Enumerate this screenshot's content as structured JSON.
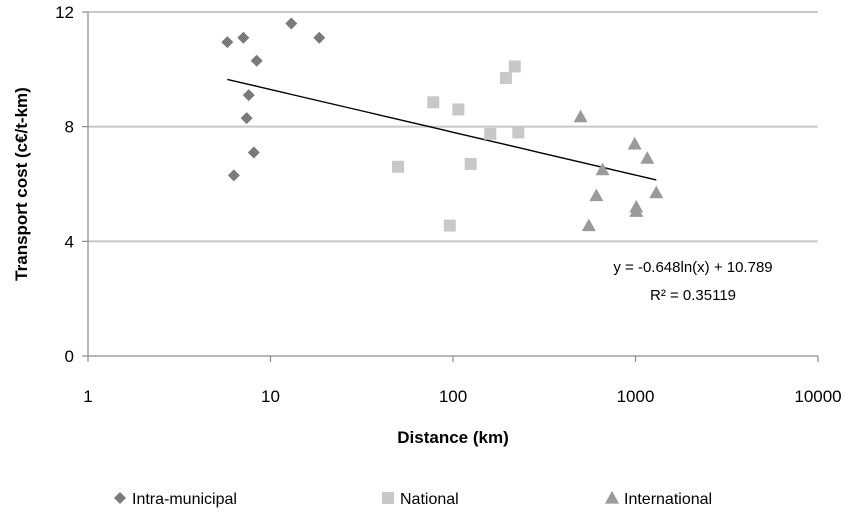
{
  "chart_data": {
    "type": "scatter",
    "xlabel": "Distance (km)",
    "ylabel": "Transport cost  (c€/t-km)",
    "xscale": "log",
    "xlim": [
      1,
      10000
    ],
    "ylim": [
      0,
      12
    ],
    "x_ticks": [
      "1",
      "10",
      "100",
      "1000",
      "10000"
    ],
    "y_ticks": [
      "0",
      "4",
      "8",
      "12"
    ],
    "grid": "horizontal",
    "legend_position": "bottom",
    "series": [
      {
        "name": "Intra-municipal",
        "marker": "diamond",
        "color": "#7a7a7a",
        "points": [
          {
            "x": 5.8,
            "y": 10.95
          },
          {
            "x": 7.1,
            "y": 11.1
          },
          {
            "x": 13,
            "y": 11.6
          },
          {
            "x": 18.5,
            "y": 11.1
          },
          {
            "x": 8.4,
            "y": 10.3
          },
          {
            "x": 7.6,
            "y": 9.1
          },
          {
            "x": 7.4,
            "y": 8.3
          },
          {
            "x": 8.1,
            "y": 7.1
          },
          {
            "x": 6.3,
            "y": 6.3
          }
        ]
      },
      {
        "name": "National",
        "marker": "square",
        "color": "#c8c8c8",
        "points": [
          {
            "x": 50,
            "y": 6.6
          },
          {
            "x": 78,
            "y": 8.85
          },
          {
            "x": 107,
            "y": 8.6
          },
          {
            "x": 125,
            "y": 6.7
          },
          {
            "x": 96,
            "y": 4.55
          },
          {
            "x": 160,
            "y": 7.75
          },
          {
            "x": 195,
            "y": 9.7
          },
          {
            "x": 218,
            "y": 10.1
          },
          {
            "x": 228,
            "y": 7.8
          }
        ]
      },
      {
        "name": "International",
        "marker": "triangle",
        "color": "#9a9a9a",
        "points": [
          {
            "x": 500,
            "y": 8.35
          },
          {
            "x": 555,
            "y": 4.55
          },
          {
            "x": 610,
            "y": 5.6
          },
          {
            "x": 660,
            "y": 6.5
          },
          {
            "x": 990,
            "y": 7.4
          },
          {
            "x": 1010,
            "y": 5.2
          },
          {
            "x": 1010,
            "y": 5.05
          },
          {
            "x": 1160,
            "y": 6.9
          },
          {
            "x": 1300,
            "y": 5.7
          }
        ]
      }
    ],
    "trendline": {
      "type": "log",
      "a": -0.648,
      "b": 10.789,
      "x_range": [
        5.8,
        1300
      ],
      "equation": "y = -0.648ln(x) + 10.789",
      "r_squared": "R² = 0.35119",
      "color": "#000000"
    }
  }
}
